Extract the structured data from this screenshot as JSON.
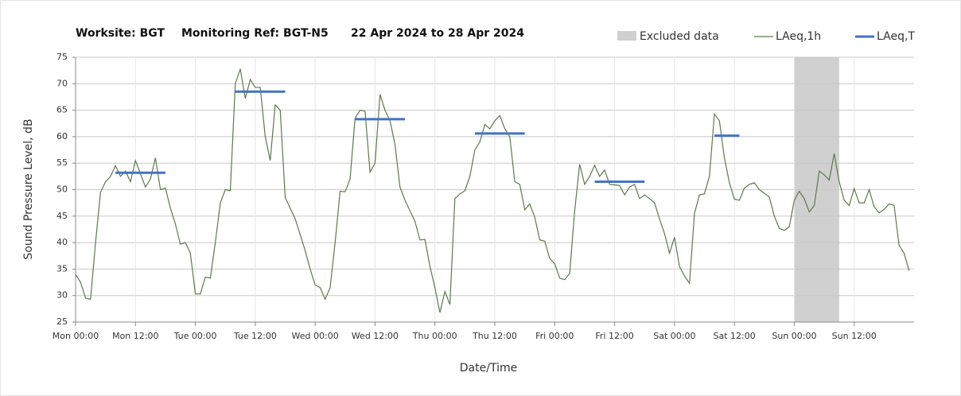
{
  "chart_data": {
    "type": "line",
    "title_parts": [
      "Worksite: BGT",
      "Monitoring Ref: BGT-N5",
      "22 Apr 2024 to 28 Apr 2024"
    ],
    "xlabel": "Date/Time",
    "ylabel": "Sound Pressure Level, dB",
    "xlim": [
      0,
      168
    ],
    "xticks": [
      {
        "value": 0,
        "label": "Mon 00:00"
      },
      {
        "value": 12,
        "label": "Mon 12:00"
      },
      {
        "value": 24,
        "label": "Tue 00:00"
      },
      {
        "value": 36,
        "label": "Tue 12:00"
      },
      {
        "value": 48,
        "label": "Wed 00:00"
      },
      {
        "value": 60,
        "label": "Wed 12:00"
      },
      {
        "value": 72,
        "label": "Thu 00:00"
      },
      {
        "value": 84,
        "label": "Thu 12:00"
      },
      {
        "value": 96,
        "label": "Fri 00:00"
      },
      {
        "value": 108,
        "label": "Fri 12:00"
      },
      {
        "value": 120,
        "label": "Sat 00:00"
      },
      {
        "value": 132,
        "label": "Sat 12:00"
      },
      {
        "value": 144,
        "label": "Sun 00:00"
      },
      {
        "value": 156,
        "label": "Sun 12:00"
      }
    ],
    "ylim": [
      25,
      75
    ],
    "yticks": [
      25,
      30,
      35,
      40,
      45,
      50,
      55,
      60,
      65,
      70,
      75
    ],
    "grid": true,
    "excluded": {
      "name": "Excluded data",
      "color": "#d0d0d0",
      "range": [
        144,
        153
      ]
    },
    "series": [
      {
        "name": "LAeq,1h",
        "color": "#5b7a4b",
        "x": [
          0,
          1,
          2,
          3,
          4,
          5,
          6,
          7,
          8,
          9,
          10,
          11,
          12,
          13,
          14,
          15,
          16,
          17,
          18,
          19,
          20,
          21,
          22,
          23,
          24,
          25,
          26,
          27,
          28,
          29,
          30,
          31,
          32,
          33,
          34,
          35,
          36,
          37,
          38,
          39,
          40,
          41,
          42,
          43,
          44,
          45,
          46,
          47,
          48,
          49,
          50,
          51,
          52,
          53,
          54,
          55,
          56,
          57,
          58,
          59,
          60,
          61,
          62,
          63,
          64,
          65,
          66,
          67,
          68,
          69,
          70,
          71,
          72,
          73,
          74,
          75,
          76,
          77,
          78,
          79,
          80,
          81,
          82,
          83,
          84,
          85,
          86,
          87,
          88,
          89,
          90,
          91,
          92,
          93,
          94,
          95,
          96,
          97,
          98,
          99,
          100,
          101,
          102,
          103,
          104,
          105,
          106,
          107,
          108,
          109,
          110,
          111,
          112,
          113,
          114,
          115,
          116,
          117,
          118,
          119,
          120,
          121,
          122,
          123,
          124,
          125,
          126,
          127,
          128,
          129,
          130,
          131,
          132,
          133,
          134,
          135,
          136,
          137,
          138,
          139,
          140,
          141,
          142,
          143,
          144,
          145,
          146,
          147,
          148,
          149,
          150,
          151,
          152,
          153,
          154,
          155,
          156,
          157,
          158,
          159,
          160,
          161,
          162,
          163,
          164,
          165,
          166,
          167
        ],
        "values": [
          34,
          32.5,
          29.5,
          29.3,
          40,
          49.5,
          51.5,
          52.5,
          54.5,
          52.5,
          53.5,
          51.5,
          55.5,
          53,
          50.5,
          52,
          56,
          50,
          50.3,
          46.5,
          43.5,
          39.7,
          40,
          38,
          30.3,
          30.3,
          33.5,
          33.3,
          40,
          47.5,
          50,
          49.8,
          70,
          72.8,
          67.2,
          70.8,
          69.3,
          69.3,
          60,
          55.5,
          66,
          65,
          48.5,
          46.5,
          44.5,
          41.5,
          38.5,
          35,
          32,
          31.5,
          29.3,
          31.5,
          40,
          49.7,
          49.6,
          52,
          63.5,
          65,
          64.8,
          53.3,
          55,
          68,
          65,
          63,
          58.5,
          50.5,
          48,
          46,
          44,
          40.5,
          40.6,
          35.5,
          31.5,
          26.8,
          30.8,
          28.3,
          48.3,
          49.2,
          49.8,
          52.5,
          57.5,
          59,
          62.3,
          61.5,
          63,
          64,
          61.5,
          60,
          51.5,
          51,
          46.2,
          47.3,
          44.8,
          40.5,
          40.3,
          37,
          36,
          33.3,
          33,
          34.2,
          46,
          54.8,
          51,
          52.5,
          54.6,
          52.5,
          53.7,
          51,
          50.9,
          50.8,
          49,
          50.5,
          51,
          48.3,
          49,
          48.3,
          47.5,
          44.5,
          41.7,
          38,
          41,
          35.5,
          33.7,
          32.3,
          45.5,
          49,
          49.2,
          52.5,
          64.3,
          63,
          56,
          51.3,
          48.2,
          48,
          50.3,
          51,
          51.3,
          50,
          49.3,
          48.6,
          45,
          42.7,
          42.3,
          43,
          48,
          49.7,
          48.3,
          45.8,
          47,
          53.5,
          52.8,
          51.8,
          56.8,
          51.5,
          48,
          47,
          50.2,
          47.5,
          47.5,
          50,
          46.8,
          45.6,
          46.3,
          47.3,
          47,
          39.5,
          38,
          34.7
        ]
      },
      {
        "name": "LAeq,T",
        "color": "#4472c4",
        "segments": [
          {
            "start": 8,
            "end": 18,
            "value": 53.2
          },
          {
            "start": 32,
            "end": 42,
            "value": 68.5
          },
          {
            "start": 56,
            "end": 66,
            "value": 63.3
          },
          {
            "start": 80,
            "end": 90,
            "value": 60.6
          },
          {
            "start": 104,
            "end": 114,
            "value": 51.5
          },
          {
            "start": 128,
            "end": 133,
            "value": 60.2
          }
        ]
      }
    ]
  }
}
